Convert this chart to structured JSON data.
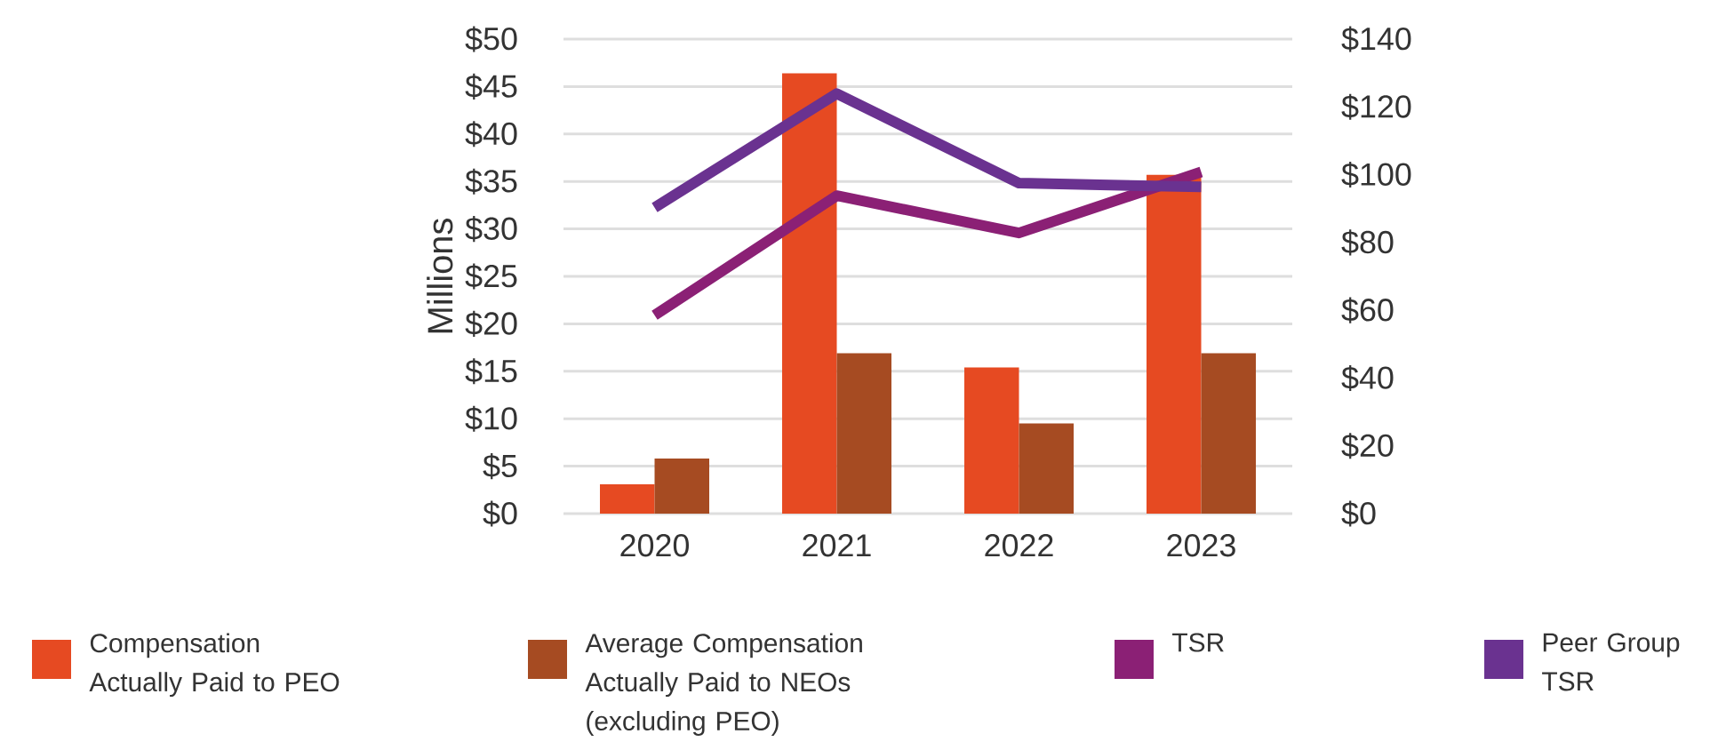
{
  "chart_data": {
    "type": "bar",
    "ylabel": "Millions",
    "categories": [
      "2020",
      "2021",
      "2022",
      "2023"
    ],
    "series": [
      {
        "name": "Compensation Actually Paid to PEO",
        "axis": "y",
        "color": "#e64a22",
        "values": [
          3.1,
          46.4,
          15.4,
          35.7
        ]
      },
      {
        "name": "Average Compensation Actually Paid to NEOs (excluding PEO)",
        "axis": "y",
        "color": "#a64b22",
        "values": [
          5.8,
          16.9,
          9.5,
          16.9
        ]
      },
      {
        "name": "TSR",
        "type": "line",
        "axis": "y2",
        "color": "#8b2075",
        "values": [
          58.5,
          93.8,
          82.8,
          100.8
        ]
      },
      {
        "name": "Peer Group TSR",
        "type": "line",
        "axis": "y2",
        "color": "#6a3290",
        "values": [
          90.3,
          123.9,
          97.5,
          96.4
        ]
      }
    ],
    "ylim": [
      0,
      50
    ],
    "yticks": [
      {
        "value": 0,
        "label": "$0"
      },
      {
        "value": 5,
        "label": "$5"
      },
      {
        "value": 10,
        "label": "$10"
      },
      {
        "value": 15,
        "label": "$15"
      },
      {
        "value": 20,
        "label": "$20"
      },
      {
        "value": 25,
        "label": "$25"
      },
      {
        "value": 30,
        "label": "$30"
      },
      {
        "value": 35,
        "label": "$35"
      },
      {
        "value": 40,
        "label": "$40"
      },
      {
        "value": 45,
        "label": "$45"
      },
      {
        "value": 50,
        "label": "$50"
      }
    ],
    "y2lim": [
      0,
      140
    ],
    "y2ticks": [
      {
        "value": 0,
        "label": "$0"
      },
      {
        "value": 20,
        "label": "$20"
      },
      {
        "value": 40,
        "label": "$40"
      },
      {
        "value": 60,
        "label": "$60"
      },
      {
        "value": 80,
        "label": "$80"
      },
      {
        "value": 100,
        "label": "$100"
      },
      {
        "value": 120,
        "label": "$120"
      },
      {
        "value": 140,
        "label": "$140"
      }
    ],
    "grid": "y",
    "legend": "bottom"
  }
}
